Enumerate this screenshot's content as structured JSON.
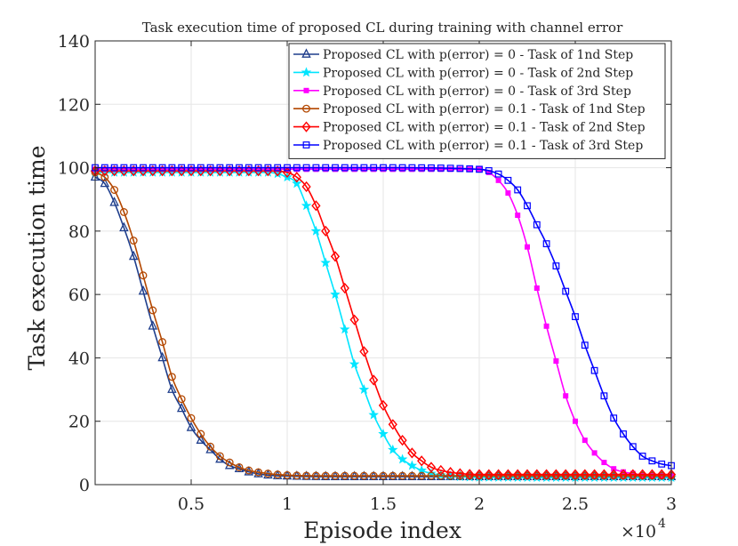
{
  "chart_data": {
    "type": "line",
    "title": "Task execution time of proposed CL during training with channel error",
    "xlabel": "Episode index",
    "ylabel": "Task execution time",
    "x_multiplier_label": "×10",
    "x_multiplier_exp": "4",
    "xlim": [
      0,
      30000
    ],
    "ylim": [
      0,
      140
    ],
    "x_ticks": [
      5000,
      10000,
      15000,
      20000,
      25000,
      30000
    ],
    "x_tick_labels": [
      "0.5",
      "1",
      "1.5",
      "2",
      "2.5",
      "3"
    ],
    "y_ticks": [
      0,
      20,
      40,
      60,
      80,
      100,
      120,
      140
    ],
    "y_tick_labels": [
      "0",
      "20",
      "40",
      "60",
      "80",
      "100",
      "120",
      "140"
    ],
    "grid": true,
    "legend_position": "top-right",
    "series": [
      {
        "name": "Proposed CL with p(error) = 0 - Task of 1nd Step",
        "color": "#1f3e8c",
        "marker": "triangle",
        "x": [
          0,
          500,
          1000,
          1500,
          2000,
          2500,
          3000,
          3500,
          4000,
          4500,
          5000,
          5500,
          6000,
          6500,
          7000,
          7500,
          8000,
          9000,
          10000,
          12000,
          15000,
          20000,
          25000,
          30000
        ],
        "y": [
          97,
          95,
          89,
          81,
          72,
          61,
          50,
          40,
          30,
          24,
          18,
          14,
          11,
          8,
          6,
          5,
          4,
          3,
          2.7,
          2.5,
          2.5,
          2.5,
          2.5,
          2.5
        ]
      },
      {
        "name": "Proposed CL with p(error) = 0 - Task of 2nd Step",
        "color": "#00e5ff",
        "marker": "star",
        "x": [
          0,
          2000,
          5000,
          8000,
          9000,
          10000,
          10500,
          11000,
          11500,
          12000,
          12500,
          13000,
          13500,
          14000,
          14500,
          15000,
          15500,
          16000,
          16500,
          17000,
          17500,
          18000,
          19000,
          20000,
          25000,
          30000
        ],
        "y": [
          98.5,
          98.5,
          98.5,
          98.5,
          98.5,
          97,
          95,
          88,
          80,
          70,
          60,
          49,
          38,
          30,
          22,
          16,
          11,
          8,
          6,
          4.5,
          3.5,
          3,
          2.5,
          2.3,
          2.2,
          2.2
        ]
      },
      {
        "name": "Proposed CL with p(error) = 0 - Task of 3rd Step",
        "color": "#ff00ff",
        "marker": "square-filled",
        "x": [
          0,
          5000,
          10000,
          15000,
          19000,
          20000,
          20500,
          21000,
          21500,
          22000,
          22500,
          23000,
          23500,
          24000,
          24500,
          25000,
          25500,
          26000,
          26500,
          27000,
          27500,
          28000,
          28500,
          29000,
          30000
        ],
        "y": [
          99.5,
          99.5,
          99.5,
          99.5,
          99.5,
          99.5,
          98.5,
          96,
          92,
          85,
          75,
          62,
          50,
          39,
          28,
          20,
          14,
          10,
          7,
          5,
          4,
          3.5,
          3,
          2.8,
          2.7
        ]
      },
      {
        "name": "Proposed CL with p(error) = 0.1 - Task of 1nd Step",
        "color": "#b34700",
        "marker": "circle",
        "x": [
          0,
          500,
          1000,
          1500,
          2000,
          2500,
          3000,
          3500,
          4000,
          4500,
          5000,
          5500,
          6000,
          6500,
          7000,
          7500,
          8000,
          9000,
          10000,
          12000,
          15000,
          20000,
          25000,
          30000
        ],
        "y": [
          98.5,
          97,
          93,
          86,
          77,
          66,
          55,
          45,
          34,
          27,
          21,
          16,
          12,
          9,
          7,
          5.5,
          4.5,
          3.5,
          3,
          2.8,
          2.8,
          2.8,
          2.8,
          2.8
        ]
      },
      {
        "name": "Proposed CL with p(error) = 0.1 - Task of 2nd Step",
        "color": "#ff0000",
        "marker": "diamond",
        "x": [
          0,
          2000,
          5000,
          8000,
          9000,
          10000,
          10500,
          11000,
          11500,
          12000,
          12500,
          13000,
          13500,
          14000,
          14500,
          15000,
          15500,
          16000,
          16500,
          17000,
          17500,
          18000,
          19000,
          20000,
          25000,
          30000
        ],
        "y": [
          99,
          99,
          99,
          99,
          99,
          98.5,
          97,
          94,
          88,
          80,
          72,
          62,
          52,
          42,
          33,
          25,
          19,
          14,
          10,
          7.5,
          5.5,
          4.5,
          3.5,
          3.2,
          3.2,
          3.2
        ]
      },
      {
        "name": "Proposed CL with p(error) = 0.1 - Task of 3rd Step",
        "color": "#0000ff",
        "marker": "square",
        "x": [
          0,
          5000,
          10000,
          15000,
          20000,
          21000,
          21500,
          22000,
          22500,
          23000,
          23500,
          24000,
          24500,
          25000,
          25500,
          26000,
          26500,
          27000,
          27500,
          28000,
          28500,
          29000,
          29500,
          30000
        ],
        "y": [
          100,
          100,
          100,
          100,
          99.5,
          98,
          96,
          93,
          88,
          82,
          76,
          69,
          61,
          53,
          44,
          36,
          28,
          21,
          16,
          12,
          9,
          7.5,
          6.5,
          6
        ]
      }
    ]
  }
}
